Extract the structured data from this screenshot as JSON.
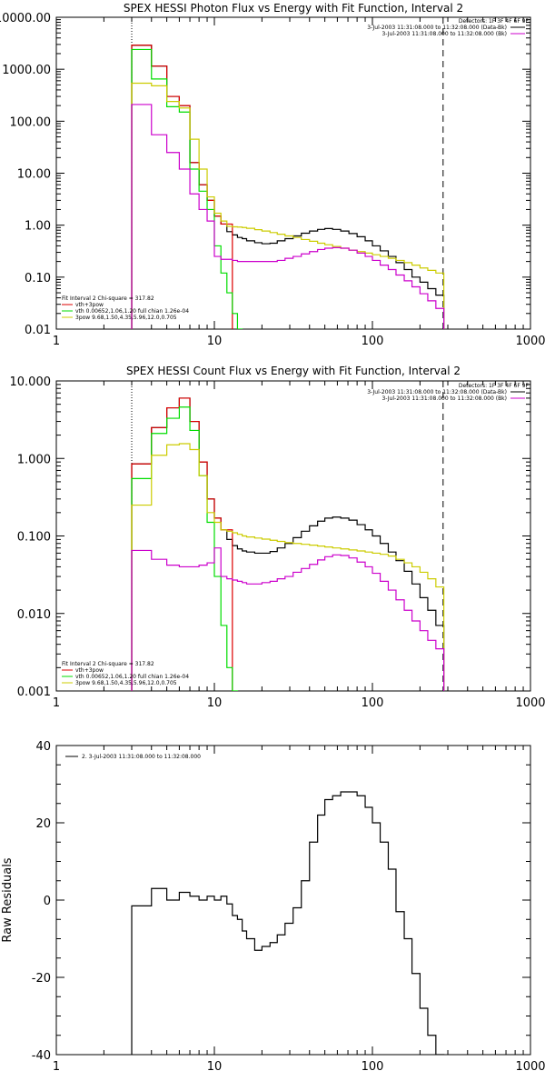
{
  "chart_data": [
    {
      "type": "line",
      "title": "SPEX HESSI Photon Flux vs Energy with Fit Function, Interval 2",
      "xscale": "log",
      "yscale": "log",
      "xlim": [
        1,
        1000
      ],
      "ylim": [
        0.01,
        10000
      ],
      "x_ticks": [
        "1",
        "10",
        "100",
        "1000"
      ],
      "y_ticks": [
        "0.01",
        "0.10",
        "1.00",
        "10.00",
        "100.00",
        "1000.00",
        "10000.00"
      ],
      "top_legend": {
        "lines": [
          {
            "text": "Detectors: 1F 3F 4F 6F 9F",
            "color": ""
          },
          {
            "text": "3-Jul-2003 11:31:08.000 to 11:32:08.000 (Data-Bk)",
            "color": "#000000"
          },
          {
            "text": "3-Jul-2003 11:31:08.000 to 11:32:08.000 (Bk)",
            "color": "#cc00cc"
          }
        ]
      },
      "fit_legend": {
        "lines": [
          {
            "text": "Fit Interval  2    Chi-square = 317.82",
            "color": ""
          },
          {
            "text": "vth+3pow",
            "color": "#dd0000"
          },
          {
            "text": "vth 0.00652,1.06,1.20  full chian 1.26e-04",
            "color": "#00dd00"
          },
          {
            "text": "3pow 9.68,1.50,4.35,5.96,12.0,0.705",
            "color": "#cccc00"
          }
        ]
      },
      "vlines": [
        {
          "x": 3,
          "style": "dotted",
          "color": "#000000"
        },
        {
          "x": 280,
          "style": "dashed",
          "color": "#000000"
        }
      ],
      "edges": [
        3,
        4,
        5,
        6,
        7,
        8,
        9,
        10,
        11,
        12,
        13,
        14,
        15,
        16,
        18,
        20,
        22.5,
        25,
        28,
        31.5,
        35.5,
        40,
        45,
        50,
        56,
        63,
        71,
        80,
        90,
        100,
        112,
        126,
        141,
        159,
        178,
        200,
        224,
        252,
        283
      ],
      "series": [
        {
          "name": "",
          "color": "#000000",
          "values": [
            2900,
            1150,
            300,
            200,
            16,
            6,
            3,
            1.5,
            1.05,
            0.75,
            0.65,
            0.58,
            0.55,
            0.5,
            0.46,
            0.44,
            0.45,
            0.5,
            0.55,
            0.62,
            0.7,
            0.77,
            0.83,
            0.86,
            0.83,
            0.77,
            0.69,
            0.6,
            0.5,
            0.4,
            0.32,
            0.25,
            0.19,
            0.14,
            0.1,
            0.08,
            0.06,
            0.045
          ]
        },
        {
          "name": "",
          "color": "#dd0000",
          "values": [
            2900,
            1150,
            300,
            200,
            16,
            6,
            3,
            1.5,
            1.05,
            1.05
          ]
        },
        {
          "name": "",
          "color": "#00dd00",
          "values": [
            2400,
            650,
            190,
            150,
            12,
            4.5,
            2,
            0.4,
            0.12,
            0.05,
            0.02,
            0.01
          ]
        },
        {
          "name": "",
          "color": "#cccc00",
          "values": [
            540,
            480,
            240,
            180,
            45,
            12,
            3.5,
            1.7,
            1.2,
            0.95,
            0.93,
            0.92,
            0.9,
            0.87,
            0.82,
            0.77,
            0.72,
            0.67,
            0.62,
            0.58,
            0.53,
            0.49,
            0.45,
            0.42,
            0.39,
            0.36,
            0.33,
            0.31,
            0.29,
            0.27,
            0.25,
            0.23,
            0.21,
            0.19,
            0.17,
            0.15,
            0.135,
            0.12
          ]
        },
        {
          "name": "",
          "color": "#cc00cc",
          "values": [
            210,
            55,
            25,
            12,
            4,
            2,
            1.2,
            0.25,
            0.22,
            0.22,
            0.21,
            0.2,
            0.2,
            0.2,
            0.2,
            0.2,
            0.2,
            0.21,
            0.23,
            0.25,
            0.28,
            0.31,
            0.34,
            0.36,
            0.37,
            0.36,
            0.33,
            0.29,
            0.25,
            0.21,
            0.17,
            0.14,
            0.11,
            0.085,
            0.065,
            0.048,
            0.035,
            0.025
          ]
        }
      ]
    },
    {
      "type": "line",
      "title": "SPEX HESSI Count Flux vs Energy with Fit Function, Interval 2",
      "xscale": "log",
      "yscale": "log",
      "xlim": [
        1,
        1000
      ],
      "ylim": [
        0.001,
        10
      ],
      "x_ticks": [
        "1",
        "10",
        "100",
        "1000"
      ],
      "y_ticks": [
        "0.001",
        "0.010",
        "0.100",
        "1.000",
        "10.000"
      ],
      "top_legend": {
        "lines": [
          {
            "text": "Detectors: 1F 3F 4F 6F 9F",
            "color": ""
          },
          {
            "text": "3-Jul-2003 11:31:08.000 to 11:32:08.000 (Data-Bk)",
            "color": "#000000"
          },
          {
            "text": "3-Jul-2003 11:31:08.000 to 11:32:08.000 (Bk)",
            "color": "#cc00cc"
          }
        ]
      },
      "fit_legend": {
        "lines": [
          {
            "text": "Fit Interval  2    Chi-square = 317.82",
            "color": ""
          },
          {
            "text": "vth+3pow",
            "color": "#dd0000"
          },
          {
            "text": "vth 0.00652,1.06,1.20  full chian 1.26e-04",
            "color": "#00dd00"
          },
          {
            "text": "3pow 9.68,1.50,4.35,5.96,12.0,0.705",
            "color": "#cccc00"
          }
        ]
      },
      "vlines": [
        {
          "x": 3,
          "style": "dotted",
          "color": "#000000"
        },
        {
          "x": 280,
          "style": "dashed",
          "color": "#000000"
        }
      ],
      "edges": [
        3,
        4,
        5,
        6,
        7,
        8,
        9,
        10,
        11,
        12,
        13,
        14,
        15,
        16,
        18,
        20,
        22.5,
        25,
        28,
        31.5,
        35.5,
        40,
        45,
        50,
        56,
        63,
        71,
        80,
        90,
        100,
        112,
        126,
        141,
        159,
        178,
        200,
        224,
        252,
        283
      ],
      "series": [
        {
          "name": "",
          "color": "#000000",
          "values": [
            0.85,
            2.5,
            4.5,
            6.0,
            3.0,
            0.9,
            0.3,
            0.17,
            0.12,
            0.09,
            0.075,
            0.068,
            0.064,
            0.062,
            0.06,
            0.06,
            0.063,
            0.07,
            0.08,
            0.095,
            0.115,
            0.135,
            0.155,
            0.17,
            0.175,
            0.17,
            0.16,
            0.14,
            0.12,
            0.1,
            0.08,
            0.062,
            0.048,
            0.035,
            0.024,
            0.016,
            0.011,
            0.007
          ]
        },
        {
          "name": "",
          "color": "#dd0000",
          "values": [
            0.85,
            2.5,
            4.5,
            6.0,
            3.0,
            0.9,
            0.3,
            0.17,
            0.12,
            0.12
          ]
        },
        {
          "name": "",
          "color": "#00dd00",
          "values": [
            0.55,
            2.1,
            3.3,
            4.6,
            2.3,
            0.6,
            0.15,
            0.03,
            0.007,
            0.002,
            0.001
          ]
        },
        {
          "name": "",
          "color": "#cccc00",
          "values": [
            0.25,
            1.1,
            1.5,
            1.55,
            1.3,
            0.6,
            0.2,
            0.15,
            0.12,
            0.115,
            0.11,
            0.105,
            0.1,
            0.097,
            0.094,
            0.091,
            0.088,
            0.085,
            0.082,
            0.08,
            0.078,
            0.076,
            0.074,
            0.072,
            0.07,
            0.068,
            0.066,
            0.064,
            0.062,
            0.06,
            0.058,
            0.055,
            0.05,
            0.045,
            0.04,
            0.034,
            0.028,
            0.022
          ]
        },
        {
          "name": "",
          "color": "#cc00cc",
          "values": [
            0.065,
            0.05,
            0.042,
            0.04,
            0.04,
            0.042,
            0.045,
            0.07,
            0.03,
            0.028,
            0.027,
            0.026,
            0.025,
            0.024,
            0.024,
            0.025,
            0.026,
            0.028,
            0.03,
            0.034,
            0.038,
            0.043,
            0.049,
            0.054,
            0.057,
            0.056,
            0.052,
            0.046,
            0.04,
            0.033,
            0.026,
            0.02,
            0.015,
            0.011,
            0.008,
            0.006,
            0.0045,
            0.0035
          ]
        }
      ]
    },
    {
      "type": "line",
      "title": "",
      "ylabel": "Raw Residuals",
      "xscale": "log",
      "yscale": "linear",
      "xlim": [
        1,
        1000
      ],
      "ylim": [
        -40,
        40
      ],
      "x_ticks": [
        "1",
        "10",
        "100",
        "1000"
      ],
      "y_ticks": [
        "-40",
        "-20",
        "0",
        "20",
        "40"
      ],
      "top_legend": {
        "lines": [
          {
            "text": "2.  3-Jul-2003 11:31:08.000 to 11:32:08.000",
            "color": "#000000"
          }
        ]
      },
      "edges": [
        3,
        4,
        5,
        6,
        7,
        8,
        9,
        10,
        11,
        12,
        13,
        14,
        15,
        16,
        18,
        20,
        22.5,
        25,
        28,
        31.5,
        35.5,
        40,
        45,
        50,
        56,
        63,
        71,
        80,
        90,
        100,
        112,
        126,
        141,
        159,
        178,
        200,
        224,
        252,
        283
      ],
      "series": [
        {
          "name": "",
          "color": "#000000",
          "values": [
            -1.5,
            3,
            0,
            2,
            1,
            0,
            1,
            0,
            1,
            -1,
            -4,
            -5,
            -8,
            -10,
            -13,
            -12,
            -11,
            -9,
            -6,
            -2,
            5,
            15,
            22,
            26,
            27,
            28,
            28,
            27,
            24,
            20,
            15,
            8,
            -3,
            -10,
            -19,
            -28,
            -35,
            -40
          ]
        }
      ]
    }
  ]
}
